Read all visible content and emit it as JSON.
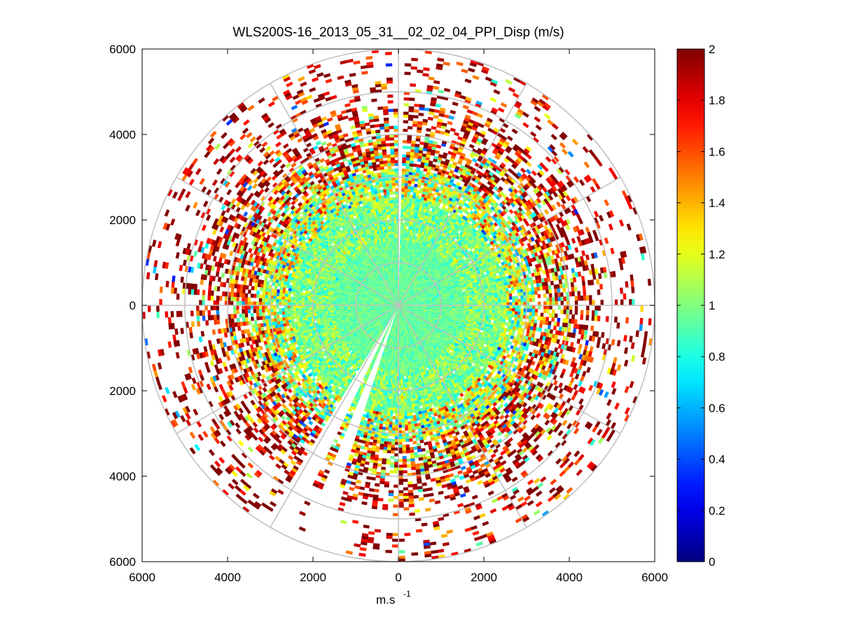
{
  "chart_data": {
    "type": "heatmap",
    "subtype": "polar-ppi",
    "title": "WLS200S-16_2013_05_31__02_02_04_PPI_Disp (m/s)",
    "xlabel_base": "m.s",
    "xlabel_exp": "-1",
    "ylabel": "",
    "xlim": [
      -6000,
      6000
    ],
    "ylim": [
      -6000,
      6000
    ],
    "x_ticks": [
      {
        "v": -6000,
        "label": "6000"
      },
      {
        "v": -4000,
        "label": "4000"
      },
      {
        "v": -2000,
        "label": "2000"
      },
      {
        "v": 0,
        "label": "0"
      },
      {
        "v": 2000,
        "label": "2000"
      },
      {
        "v": 4000,
        "label": "4000"
      },
      {
        "v": 6000,
        "label": "6000"
      }
    ],
    "y_ticks": [
      {
        "v": 6000,
        "label": "6000"
      },
      {
        "v": 4000,
        "label": "4000"
      },
      {
        "v": 2000,
        "label": "2000"
      },
      {
        "v": 0,
        "label": "0"
      },
      {
        "v": -2000,
        "label": "2000"
      },
      {
        "v": -4000,
        "label": "4000"
      },
      {
        "v": -6000,
        "label": "6000"
      }
    ],
    "polar_rings": [
      1000,
      2000,
      3000,
      4000,
      5000,
      6000
    ],
    "polar_spokes_deg": [
      0,
      30,
      60,
      90,
      120,
      150,
      180,
      210,
      240,
      270,
      300,
      330
    ],
    "max_range": 6000,
    "colorbar": {
      "min": 0,
      "max": 2,
      "ticks": [
        {
          "v": 0,
          "label": "0"
        },
        {
          "v": 0.2,
          "label": "0.2"
        },
        {
          "v": 0.4,
          "label": "0.4"
        },
        {
          "v": 0.6,
          "label": "0.6"
        },
        {
          "v": 0.8,
          "label": "0.8"
        },
        {
          "v": 1,
          "label": "1"
        },
        {
          "v": 1.2,
          "label": "1.2"
        },
        {
          "v": 1.4,
          "label": "1.4"
        },
        {
          "v": 1.6,
          "label": "1.6"
        },
        {
          "v": 1.8,
          "label": "1.8"
        },
        {
          "v": 2,
          "label": "2"
        }
      ],
      "colormap": "jet"
    },
    "gaps_bearing_deg": [
      [
        0,
        2
      ],
      [
        198,
        202
      ],
      [
        206,
        212
      ]
    ],
    "radial_profile": [
      {
        "r_max": 1500,
        "mean": 0.95,
        "spread": 0.06,
        "coverage": 1.0
      },
      {
        "r_max": 2500,
        "mean": 1.0,
        "spread": 0.12,
        "coverage": 0.98
      },
      {
        "r_max": 3200,
        "mean": 1.1,
        "spread": 0.3,
        "coverage": 0.9
      },
      {
        "r_max": 4000,
        "mean": 1.6,
        "spread": 0.45,
        "coverage": 0.7
      },
      {
        "r_max": 4700,
        "mean": 1.85,
        "spread": 0.35,
        "coverage": 0.45
      },
      {
        "r_max": 6000,
        "mean": 1.9,
        "spread": 0.3,
        "coverage": 0.18
      }
    ]
  }
}
